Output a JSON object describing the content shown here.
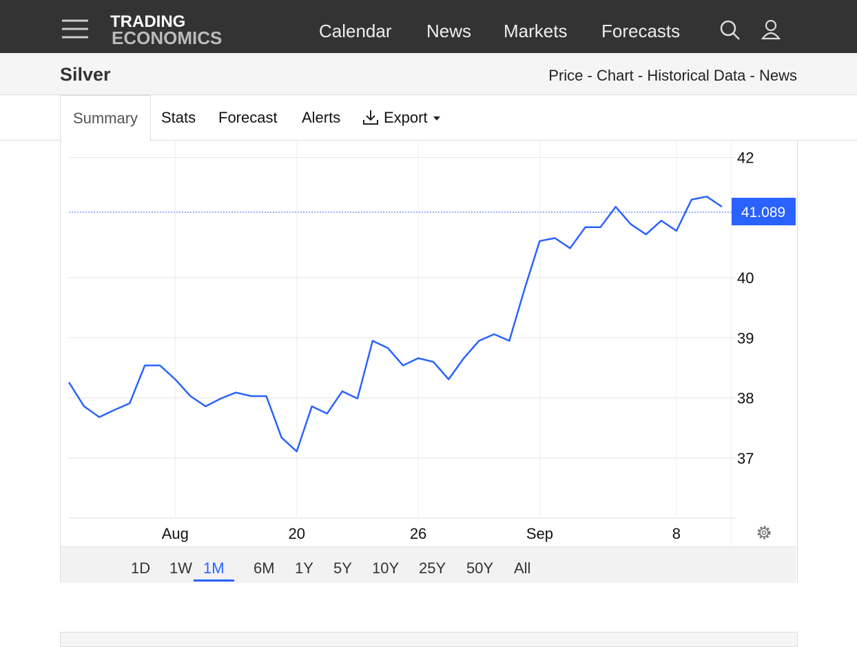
{
  "nav": {
    "logo_top": "TRADING",
    "logo_bottom": "ECONOMICS",
    "links": [
      "Calendar",
      "News",
      "Markets",
      "Forecasts"
    ]
  },
  "header": {
    "title": "Silver",
    "links": [
      "Price",
      "Chart",
      "Historical Data",
      "News"
    ],
    "separator": "-"
  },
  "tabs": [
    "Summary",
    "Stats",
    "Forecast",
    "Alerts",
    "Export"
  ],
  "ranges": [
    "1D",
    "1W",
    "1M",
    "6M",
    "1Y",
    "5Y",
    "10Y",
    "25Y",
    "50Y",
    "All"
  ],
  "active_range": "1M",
  "chart_data": {
    "type": "line",
    "color": "#2962ff",
    "categories": [
      null,
      null,
      null,
      null,
      null,
      null,
      null,
      "Aug",
      null,
      null,
      null,
      null,
      null,
      null,
      null,
      "20",
      null,
      null,
      null,
      null,
      null,
      null,
      null,
      "26",
      null,
      null,
      null,
      null,
      null,
      null,
      null,
      "Sep",
      null,
      null,
      null,
      null,
      null,
      null,
      null,
      null,
      "8",
      null,
      null,
      null
    ],
    "values": [
      38.26,
      37.86,
      37.68,
      37.8,
      37.91,
      38.54,
      38.54,
      38.31,
      38.03,
      37.86,
      37.99,
      38.09,
      38.03,
      38.03,
      37.34,
      37.11,
      37.86,
      37.74,
      38.11,
      37.99,
      38.95,
      38.83,
      38.54,
      38.66,
      38.6,
      38.31,
      38.66,
      38.95,
      39.06,
      38.95,
      39.81,
      40.61,
      40.66,
      40.49,
      40.84,
      40.84,
      41.18,
      40.89,
      40.72,
      40.95,
      40.78,
      41.3,
      41.35,
      41.18
    ],
    "current_price": 41.089,
    "ylim": [
      36,
      42.27
    ],
    "yticks": [
      37,
      38,
      39,
      40,
      42
    ],
    "grid": true
  }
}
